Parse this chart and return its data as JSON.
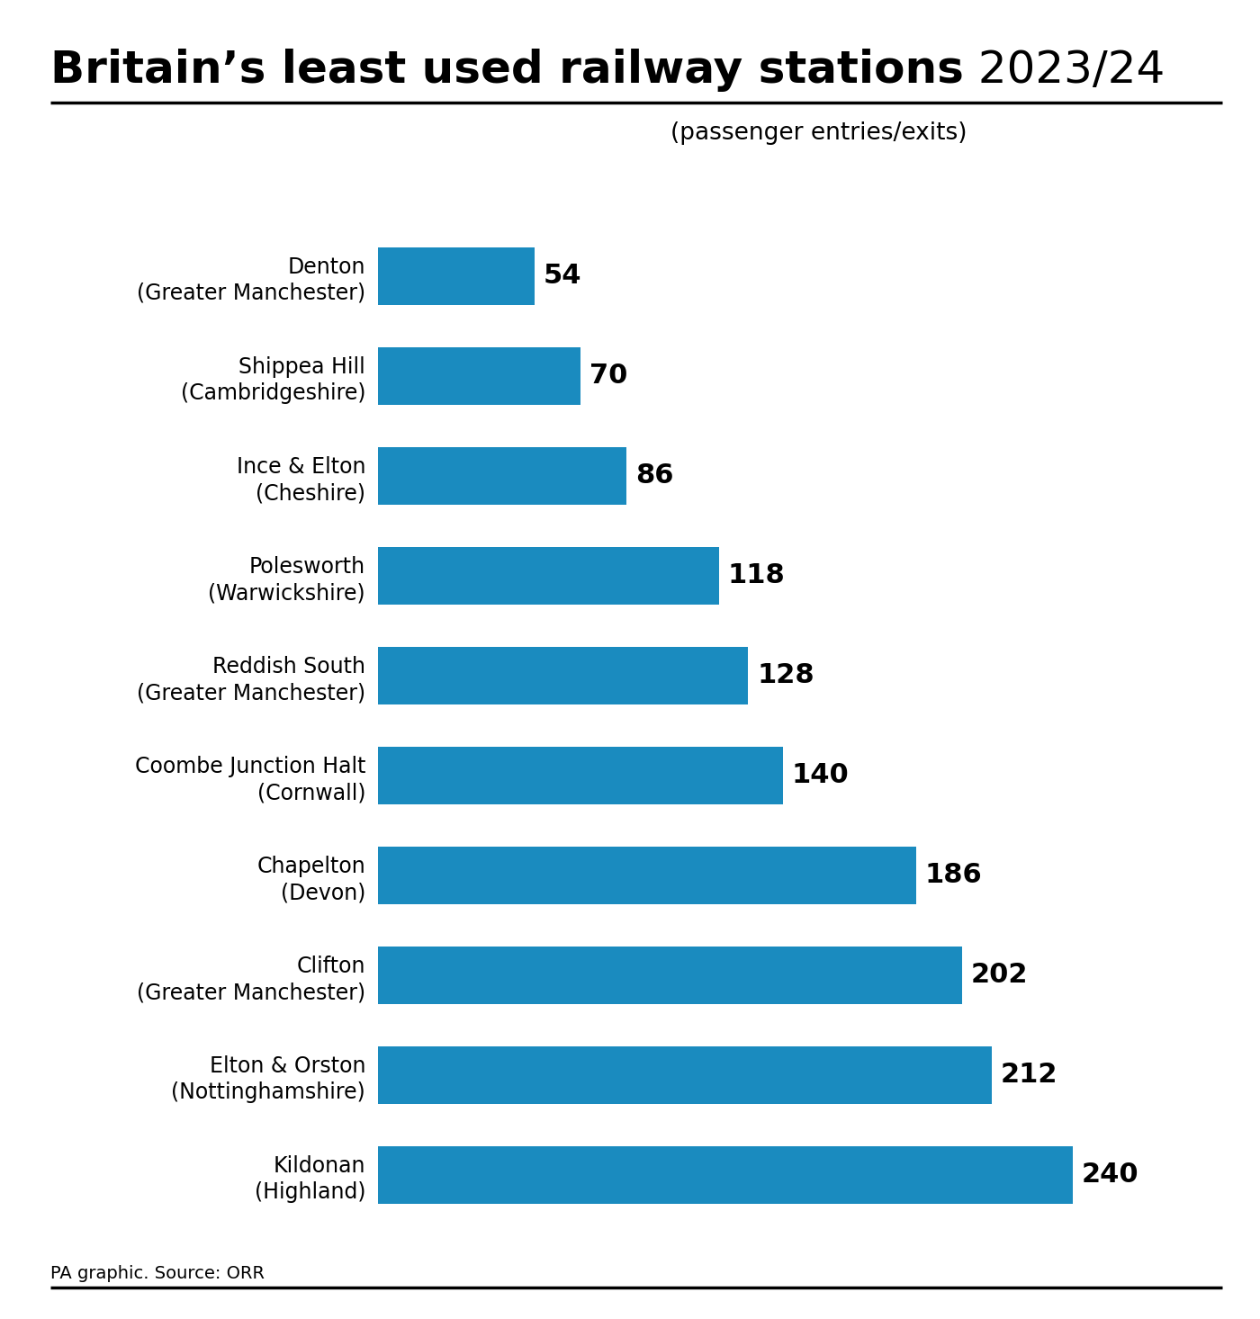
{
  "title_bold": "Britain’s least used railway stations",
  "title_year": " 2023/24",
  "subtitle": "(passenger entries/exits)",
  "footer": "PA graphic. Source: ORR",
  "bar_color": "#1a8bbf",
  "background_color": "#ffffff",
  "categories": [
    "Denton\n(Greater Manchester)",
    "Shippea Hill\n(Cambridgeshire)",
    "Ince & Elton\n(Cheshire)",
    "Polesworth\n(Warwickshire)",
    "Reddish South\n(Greater Manchester)",
    "Coombe Junction Halt\n(Cornwall)",
    "Chapelton\n(Devon)",
    "Clifton\n(Greater Manchester)",
    "Elton & Orston\n(Nottinghamshire)",
    "Kildonan\n(Highland)"
  ],
  "values": [
    54,
    70,
    86,
    118,
    128,
    140,
    186,
    202,
    212,
    240
  ],
  "xlim": [
    0,
    270
  ],
  "title_fontsize": 36,
  "subtitle_fontsize": 19,
  "label_fontsize": 22,
  "ytick_fontsize": 17,
  "footer_fontsize": 14
}
